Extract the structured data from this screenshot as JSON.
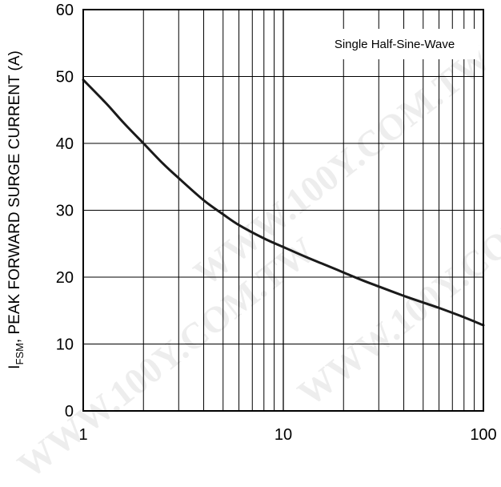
{
  "watermark": "WWW.100Y.COM.TW",
  "colors": {
    "axis": "#000000",
    "grid": "#000000",
    "curve": "#1a1a1a",
    "background": "#ffffff"
  },
  "chart_data": {
    "type": "line",
    "title": "",
    "annotation": "Single Half-Sine-Wave",
    "ylabel_main": "I",
    "ylabel_sub": "FSM",
    "ylabel_rest": ", PEAK FORWARD SURGE CURRENT (A)",
    "xlabel": "",
    "x_scale": "log",
    "xlim": [
      1,
      100
    ],
    "ylim": [
      0,
      60
    ],
    "x_ticks": [
      1,
      10,
      100
    ],
    "x_tick_labels": [
      "1",
      "10",
      "100"
    ],
    "y_ticks": [
      0,
      10,
      20,
      30,
      40,
      50,
      60
    ],
    "y_tick_labels": [
      "0",
      "10",
      "20",
      "30",
      "40",
      "50",
      "60"
    ],
    "grid": true,
    "series": [
      {
        "x": [
          1,
          1.3,
          1.6,
          2,
          2.5,
          3,
          4,
          5,
          6,
          8,
          10,
          13,
          16,
          20,
          25,
          30,
          40,
          50,
          60,
          80,
          100
        ],
        "y": [
          49.5,
          46.0,
          43.0,
          40.0,
          37.0,
          34.8,
          31.5,
          29.4,
          27.8,
          25.8,
          24.5,
          23.0,
          21.9,
          20.7,
          19.5,
          18.6,
          17.2,
          16.2,
          15.4,
          14.0,
          12.8
        ]
      }
    ]
  }
}
